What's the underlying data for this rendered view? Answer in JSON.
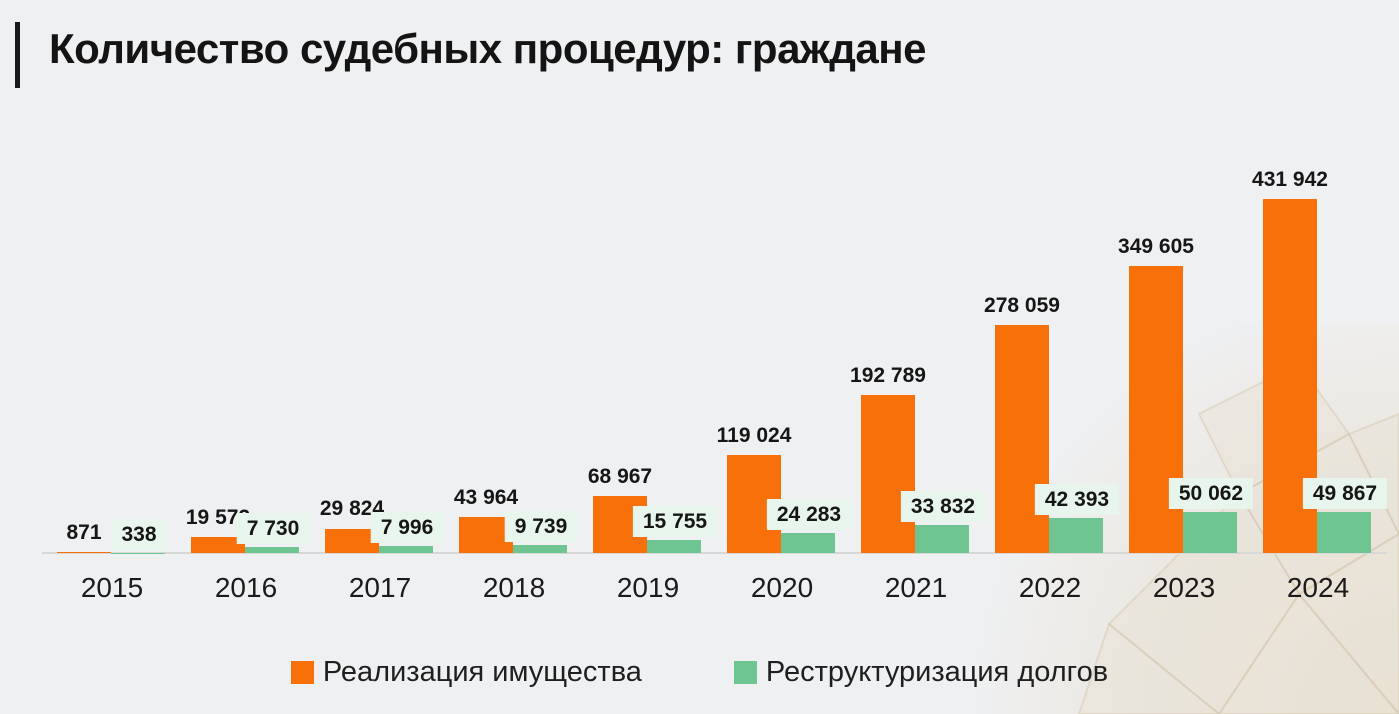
{
  "title": "Количество судебных процедур: граждане",
  "colors": {
    "bg": "#EFF0F2",
    "orange": "#F8700A",
    "green": "#6FC592",
    "mint": "#E8F5EC",
    "ink": "#1A1A1A",
    "axis": "#D8D8D8"
  },
  "chart_data": {
    "type": "bar",
    "title": "Количество судебных процедур: граждане",
    "categories": [
      "2015",
      "2016",
      "2017",
      "2018",
      "2019",
      "2020",
      "2021",
      "2022",
      "2023",
      "2024"
    ],
    "series": [
      {
        "name": "Реализация имущества",
        "color": "#F8700A",
        "values": [
          871,
          19572,
          29824,
          43964,
          68967,
          119024,
          192789,
          278059,
          349605,
          431942
        ],
        "labels": [
          "871",
          "19 572",
          "29 824",
          "43 964",
          "68 967",
          "119 024",
          "192 789",
          "278 059",
          "349 605",
          "431 942"
        ]
      },
      {
        "name": "Реструктуризация долгов",
        "color": "#6FC592",
        "values": [
          338,
          7730,
          7996,
          9739,
          15755,
          24283,
          33832,
          42393,
          50062,
          49867
        ],
        "labels": [
          "338",
          "7 730",
          "7 996",
          "9 739",
          "15 755",
          "24 283",
          "33 832",
          "42 393",
          "50 062",
          "49 867"
        ]
      }
    ],
    "ylim": [
      0,
      431942
    ],
    "grid": false,
    "value_labels": true,
    "legend_position": "bottom"
  }
}
